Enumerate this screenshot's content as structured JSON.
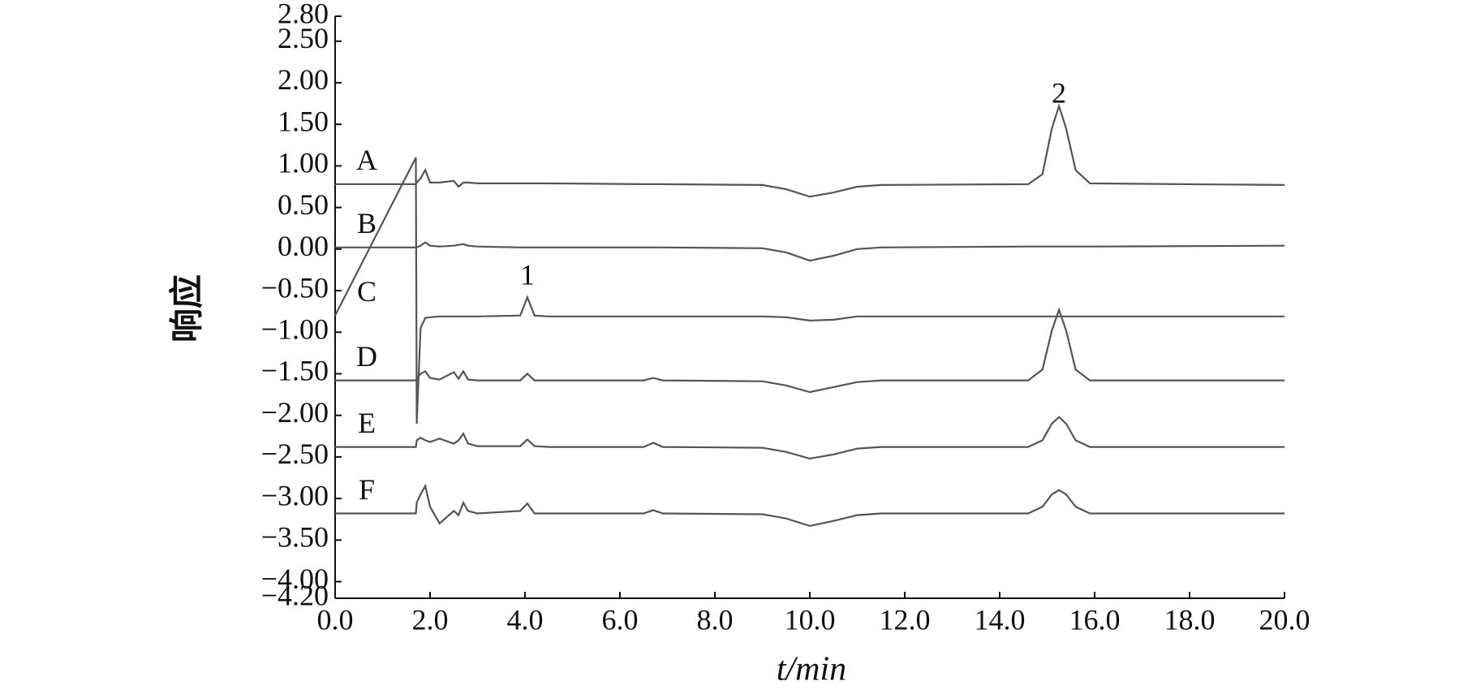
{
  "chart_data": {
    "type": "line",
    "x_label": "t/min",
    "y_label": "响应",
    "x": [
      0,
      1.7,
      1.72,
      1.8,
      1.9,
      2.0,
      2.2,
      2.5,
      2.6,
      2.7,
      2.8,
      3.0,
      3.9,
      4.05,
      4.2,
      4.5,
      6.5,
      6.7,
      6.9,
      9.0,
      9.5,
      10.0,
      10.5,
      11.0,
      11.5,
      14.6,
      14.9,
      15.1,
      15.25,
      15.4,
      15.6,
      15.9,
      20.0
    ],
    "series": [
      {
        "name": "A",
        "color": "#555555",
        "values": [
          0.78,
          0.78,
          0.8,
          0.85,
          0.95,
          0.8,
          0.8,
          0.82,
          0.75,
          0.8,
          0.8,
          0.79,
          0.79,
          0.79,
          0.79,
          0.79,
          0.78,
          0.78,
          0.78,
          0.77,
          0.72,
          0.63,
          0.68,
          0.75,
          0.77,
          0.78,
          0.9,
          1.45,
          1.72,
          1.45,
          0.95,
          0.79,
          0.77
        ]
      },
      {
        "name": "B",
        "color": "#555555",
        "values": [
          0.02,
          0.02,
          0.02,
          0.04,
          0.08,
          0.04,
          0.03,
          0.04,
          0.05,
          0.06,
          0.04,
          0.03,
          0.02,
          0.02,
          0.02,
          0.02,
          0.02,
          0.02,
          0.02,
          0.01,
          -0.04,
          -0.14,
          -0.08,
          0.0,
          0.02,
          0.03,
          0.03,
          0.03,
          0.03,
          0.03,
          0.03,
          0.03,
          0.04
        ]
      },
      {
        "name": "C",
        "color": "#555555",
        "values": [
          -0.8,
          1.1,
          -2.1,
          -0.95,
          -0.83,
          -0.82,
          -0.81,
          -0.81,
          -0.81,
          -0.81,
          -0.81,
          -0.81,
          -0.8,
          -0.58,
          -0.8,
          -0.81,
          -0.81,
          -0.81,
          -0.81,
          -0.81,
          -0.82,
          -0.86,
          -0.85,
          -0.81,
          -0.81,
          -0.81,
          -0.81,
          -0.81,
          -0.81,
          -0.81,
          -0.81,
          -0.81,
          -0.81
        ]
      },
      {
        "name": "D",
        "color": "#555555",
        "values": [
          -1.58,
          -1.58,
          -1.56,
          -1.5,
          -1.47,
          -1.55,
          -1.57,
          -1.48,
          -1.56,
          -1.47,
          -1.57,
          -1.58,
          -1.58,
          -1.5,
          -1.58,
          -1.58,
          -1.58,
          -1.55,
          -1.58,
          -1.59,
          -1.64,
          -1.72,
          -1.66,
          -1.6,
          -1.58,
          -1.58,
          -1.45,
          -0.98,
          -0.73,
          -0.98,
          -1.45,
          -1.58,
          -1.58
        ]
      },
      {
        "name": "E",
        "color": "#555555",
        "values": [
          -2.38,
          -2.38,
          -2.3,
          -2.27,
          -2.3,
          -2.32,
          -2.28,
          -2.34,
          -2.3,
          -2.22,
          -2.34,
          -2.37,
          -2.37,
          -2.29,
          -2.37,
          -2.38,
          -2.38,
          -2.33,
          -2.38,
          -2.39,
          -2.44,
          -2.52,
          -2.47,
          -2.4,
          -2.38,
          -2.38,
          -2.3,
          -2.1,
          -2.02,
          -2.1,
          -2.3,
          -2.38,
          -2.38
        ]
      },
      {
        "name": "F",
        "color": "#555555",
        "values": [
          -3.18,
          -3.18,
          -3.05,
          -2.95,
          -2.85,
          -3.1,
          -3.3,
          -3.15,
          -3.2,
          -3.05,
          -3.15,
          -3.18,
          -3.15,
          -3.06,
          -3.18,
          -3.18,
          -3.18,
          -3.14,
          -3.18,
          -3.19,
          -3.24,
          -3.33,
          -3.27,
          -3.2,
          -3.18,
          -3.18,
          -3.1,
          -2.95,
          -2.9,
          -2.95,
          -3.1,
          -3.18,
          -3.18
        ]
      }
    ],
    "annotations": [
      "1",
      "2"
    ],
    "xlim": [
      0,
      20
    ],
    "xticks": [
      {
        "value": 0,
        "label": "0.0"
      },
      {
        "value": 2,
        "label": "2.0"
      },
      {
        "value": 4,
        "label": "4.0"
      },
      {
        "value": 6,
        "label": "6.0"
      },
      {
        "value": 8,
        "label": "8.0"
      },
      {
        "value": 10,
        "label": "10.0"
      },
      {
        "value": 12,
        "label": "12.0"
      },
      {
        "value": 14,
        "label": "14.0"
      },
      {
        "value": 16,
        "label": "16.0"
      },
      {
        "value": 18,
        "label": "18.0"
      },
      {
        "value": 20,
        "label": "20.0"
      }
    ],
    "ylim": [
      -4.2,
      2.8
    ],
    "yticks": [
      {
        "value": 2.8,
        "label": "2.80"
      },
      {
        "value": 2.5,
        "label": "2.50"
      },
      {
        "value": 2,
        "label": "2.00"
      },
      {
        "value": 1.5,
        "label": "1.50"
      },
      {
        "value": 1,
        "label": "1.00"
      },
      {
        "value": 0.5,
        "label": "0.50"
      },
      {
        "value": 0,
        "label": "0.00"
      },
      {
        "value": -0.5,
        "label": "−0.50"
      },
      {
        "value": -1,
        "label": "−1.00"
      },
      {
        "value": -1.5,
        "label": "−1.50"
      },
      {
        "value": -2,
        "label": "−2.00"
      },
      {
        "value": -2.5,
        "label": "−2.50"
      },
      {
        "value": -3,
        "label": "−3.00"
      },
      {
        "value": -3.5,
        "label": "−3.50"
      },
      {
        "value": -4,
        "label": "−4.00"
      },
      {
        "value": -4.2,
        "label": "−4.20"
      }
    ],
    "grid": false
  }
}
